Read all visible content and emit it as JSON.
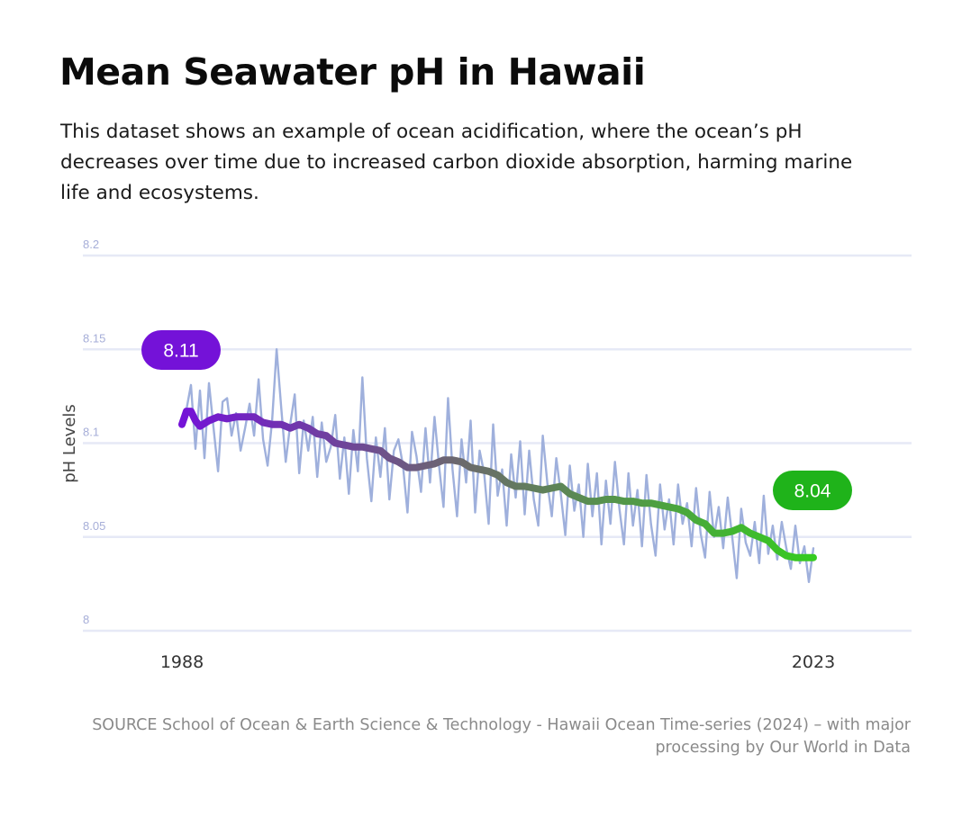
{
  "title": "Mean Seawater pH in Hawaii",
  "subtitle": "This dataset shows an example of ocean acidification, where the ocean’s pH decreases over time due to increased carbon dioxide absorption, harming marine life and ecosystems.",
  "source": "SOURCE School of Ocean & Earth Science & Technology - Hawaii Ocean Time-series (2024) – with major processing by Our World in Data",
  "colors": {
    "raw_line": "#9fb0dc",
    "grid": "#e6e9f6",
    "trend_start": "#7412d8",
    "trend_mid": "#6b6b6b",
    "trend_end": "#35cc1f",
    "badge_start": "#7412d8",
    "badge_end": "#1fb31a"
  },
  "chart_data": {
    "type": "line",
    "ylabel": "pH Levels",
    "ylim": [
      8.0,
      8.2
    ],
    "xlim": [
      1988,
      2023
    ],
    "y_ticks": [
      "8.2",
      "8.15",
      "8.1",
      "8.05",
      "8"
    ],
    "y_tick_values": [
      8.2,
      8.15,
      8.1,
      8.05,
      8.0
    ],
    "x_ticks": [
      "1988",
      "2023"
    ],
    "x_tick_values": [
      1988,
      2023
    ],
    "grid": true,
    "annotations": [
      {
        "label": "8.11",
        "x": 1988,
        "y": 8.11
      },
      {
        "label": "8.04",
        "x": 2023,
        "y": 8.04
      }
    ],
    "series": [
      {
        "style": "raw",
        "x": [
          1988.0,
          1988.25,
          1988.5,
          1988.75,
          1989.0,
          1989.25,
          1989.5,
          1989.75,
          1990.0,
          1990.25,
          1990.5,
          1990.75,
          1991.0,
          1991.25,
          1991.5,
          1991.75,
          1992.0,
          1992.25,
          1992.5,
          1992.75,
          1993.0,
          1993.25,
          1993.5,
          1993.75,
          1994.0,
          1994.25,
          1994.5,
          1994.75,
          1995.0,
          1995.25,
          1995.5,
          1995.75,
          1996.0,
          1996.25,
          1996.5,
          1996.75,
          1997.0,
          1997.25,
          1997.5,
          1997.75,
          1998.0,
          1998.25,
          1998.5,
          1998.75,
          1999.0,
          1999.25,
          1999.5,
          1999.75,
          2000.0,
          2000.25,
          2000.5,
          2000.75,
          2001.0,
          2001.25,
          2001.5,
          2001.75,
          2002.0,
          2002.25,
          2002.5,
          2002.75,
          2003.0,
          2003.25,
          2003.5,
          2003.75,
          2004.0,
          2004.25,
          2004.5,
          2004.75,
          2005.0,
          2005.25,
          2005.5,
          2005.75,
          2006.0,
          2006.25,
          2006.5,
          2006.75,
          2007.0,
          2007.25,
          2007.5,
          2007.75,
          2008.0,
          2008.25,
          2008.5,
          2008.75,
          2009.0,
          2009.25,
          2009.5,
          2009.75,
          2010.0,
          2010.25,
          2010.5,
          2010.75,
          2011.0,
          2011.25,
          2011.5,
          2011.75,
          2012.0,
          2012.25,
          2012.5,
          2012.75,
          2013.0,
          2013.25,
          2013.5,
          2013.75,
          2014.0,
          2014.25,
          2014.5,
          2014.75,
          2015.0,
          2015.25,
          2015.5,
          2015.75,
          2016.0,
          2016.25,
          2016.5,
          2016.75,
          2017.0,
          2017.25,
          2017.5,
          2017.75,
          2018.0,
          2018.25,
          2018.5,
          2018.75,
          2019.0,
          2019.25,
          2019.5,
          2019.75,
          2020.0,
          2020.25,
          2020.5,
          2020.75,
          2021.0,
          2021.25,
          2021.5,
          2021.75,
          2022.0,
          2022.25,
          2022.5,
          2022.75,
          2023.0
        ],
        "values": [
          8.11,
          8.118,
          8.131,
          8.097,
          8.128,
          8.092,
          8.132,
          8.108,
          8.085,
          8.122,
          8.124,
          8.104,
          8.116,
          8.096,
          8.108,
          8.121,
          8.104,
          8.134,
          8.102,
          8.088,
          8.112,
          8.15,
          8.119,
          8.09,
          8.11,
          8.126,
          8.084,
          8.112,
          8.096,
          8.114,
          8.082,
          8.111,
          8.09,
          8.098,
          8.115,
          8.081,
          8.103,
          8.073,
          8.107,
          8.085,
          8.135,
          8.092,
          8.069,
          8.103,
          8.082,
          8.108,
          8.07,
          8.096,
          8.102,
          8.088,
          8.063,
          8.106,
          8.093,
          8.074,
          8.108,
          8.079,
          8.114,
          8.088,
          8.066,
          8.124,
          8.086,
          8.061,
          8.102,
          8.079,
          8.112,
          8.063,
          8.096,
          8.084,
          8.057,
          8.11,
          8.072,
          8.086,
          8.056,
          8.094,
          8.071,
          8.101,
          8.062,
          8.096,
          8.07,
          8.056,
          8.104,
          8.079,
          8.061,
          8.092,
          8.073,
          8.051,
          8.088,
          8.064,
          8.078,
          8.05,
          8.089,
          8.061,
          8.084,
          8.046,
          8.08,
          8.057,
          8.09,
          8.065,
          8.046,
          8.084,
          8.056,
          8.075,
          8.045,
          8.083,
          8.057,
          8.04,
          8.078,
          8.054,
          8.07,
          8.046,
          8.078,
          8.057,
          8.068,
          8.045,
          8.076,
          8.052,
          8.039,
          8.074,
          8.05,
          8.066,
          8.044,
          8.071,
          8.05,
          8.028,
          8.065,
          8.047,
          8.04,
          8.058,
          8.036,
          8.072,
          8.041,
          8.056,
          8.038,
          8.058,
          8.044,
          8.033,
          8.056,
          8.036,
          8.045,
          8.026,
          8.044
        ]
      },
      {
        "style": "trend",
        "x": [
          1988.0,
          1988.25,
          1988.5,
          1988.75,
          1989.0,
          1989.5,
          1990.0,
          1990.5,
          1991.0,
          1991.5,
          1992.0,
          1992.5,
          1993.0,
          1993.5,
          1994.0,
          1994.5,
          1995.0,
          1995.5,
          1996.0,
          1996.5,
          1997.0,
          1997.5,
          1998.0,
          1998.5,
          1999.0,
          1999.5,
          2000.0,
          2000.5,
          2001.0,
          2001.5,
          2002.0,
          2002.5,
          2003.0,
          2003.5,
          2004.0,
          2004.5,
          2005.0,
          2005.5,
          2006.0,
          2006.5,
          2007.0,
          2007.5,
          2008.0,
          2008.5,
          2009.0,
          2009.5,
          2010.0,
          2010.5,
          2011.0,
          2011.5,
          2012.0,
          2012.5,
          2013.0,
          2013.5,
          2014.0,
          2014.5,
          2015.0,
          2015.5,
          2016.0,
          2016.5,
          2017.0,
          2017.5,
          2018.0,
          2018.5,
          2019.0,
          2019.5,
          2020.0,
          2020.5,
          2021.0,
          2021.5,
          2022.0,
          2022.5,
          2023.0
        ],
        "values": [
          8.11,
          8.117,
          8.117,
          8.112,
          8.109,
          8.112,
          8.114,
          8.113,
          8.114,
          8.114,
          8.114,
          8.111,
          8.11,
          8.11,
          8.108,
          8.11,
          8.108,
          8.105,
          8.104,
          8.1,
          8.099,
          8.098,
          8.098,
          8.097,
          8.096,
          8.092,
          8.09,
          8.087,
          8.087,
          8.088,
          8.089,
          8.091,
          8.091,
          8.09,
          8.087,
          8.086,
          8.085,
          8.083,
          8.079,
          8.077,
          8.077,
          8.076,
          8.075,
          8.076,
          8.077,
          8.073,
          8.071,
          8.069,
          8.069,
          8.07,
          8.07,
          8.069,
          8.069,
          8.068,
          8.068,
          8.067,
          8.066,
          8.065,
          8.063,
          8.059,
          8.057,
          8.052,
          8.052,
          8.053,
          8.055,
          8.052,
          8.05,
          8.048,
          8.043,
          8.04,
          8.039,
          8.039,
          8.039
        ]
      }
    ]
  }
}
